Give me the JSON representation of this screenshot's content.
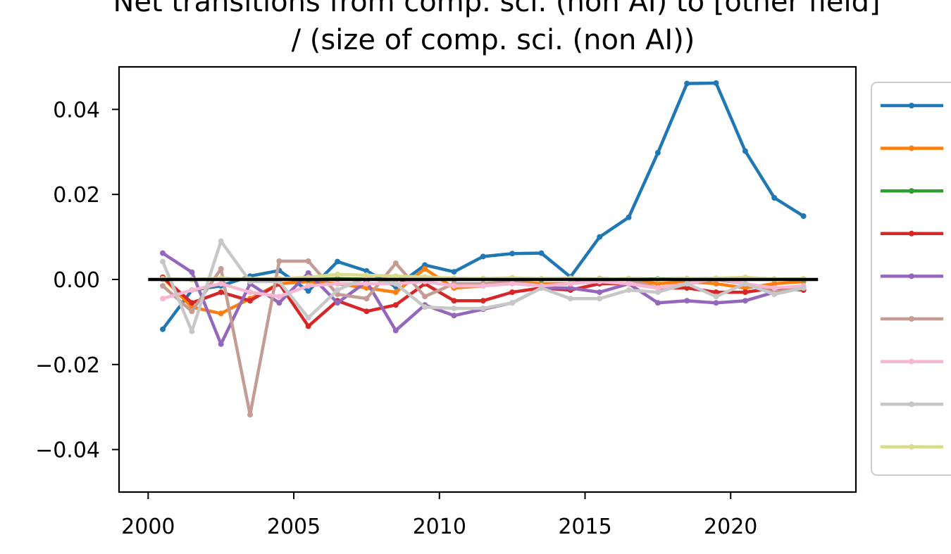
{
  "chart_data": {
    "type": "line",
    "title_line1": "Net transitions from comp. sci. (non AI) to [other field]",
    "title_line2": "/ (size of comp. sci. (non AI))",
    "xlabel": "",
    "ylabel": "",
    "xlim": [
      1999.0,
      2024.3
    ],
    "ylim": [
      -0.05,
      0.05
    ],
    "xticks": [
      2000,
      2005,
      2010,
      2015,
      2020
    ],
    "xtick_labels": [
      "2000",
      "2005",
      "2010",
      "2015",
      "2020"
    ],
    "yticks": [
      0.04,
      0.02,
      0.0,
      -0.02,
      -0.04
    ],
    "ytick_labels": [
      "0.04",
      "0.02",
      "0.00",
      "−0.02",
      "−0.04"
    ],
    "grid": false,
    "legend_placement": "outside right, clipped",
    "x": [
      2000.5,
      2001.5,
      2002.5,
      2003.5,
      2004.5,
      2005.5,
      2006.5,
      2007.5,
      2008.5,
      2009.5,
      2010.5,
      2011.5,
      2012.5,
      2013.5,
      2014.5,
      2015.5,
      2016.5,
      2017.5,
      2018.5,
      2019.5,
      2020.5,
      2021.5,
      2022.5
    ],
    "zero_line": {
      "x_from": 2000,
      "x_to": 2023,
      "y": 0.0,
      "color": "#000000"
    },
    "series": [
      {
        "color": "#1f77b4",
        "values": [
          -0.0117,
          -0.0025,
          -0.0015,
          0.0008,
          0.0021,
          -0.0027,
          0.0042,
          0.002,
          -0.0017,
          0.0034,
          0.0018,
          0.0054,
          0.0061,
          0.0062,
          0.0006,
          0.01,
          0.0146,
          0.0298,
          0.0461,
          0.0462,
          0.0302,
          0.0192,
          0.0149
        ]
      },
      {
        "color": "#ff7f0e",
        "values": [
          0.0005,
          -0.0065,
          -0.008,
          -0.0045,
          -0.001,
          -0.0005,
          -0.001,
          -0.002,
          -0.003,
          0.0025,
          -0.002,
          -0.0015,
          -0.0005,
          -0.001,
          -0.001,
          0.0002,
          0.0,
          -0.001,
          -0.0005,
          -0.001,
          -0.002,
          -0.001,
          -0.0005
        ]
      },
      {
        "color": "#2ca02c",
        "values": [
          0.0001,
          0.0,
          0.0002,
          0.0,
          0.0001,
          0.0,
          0.0002,
          0.0001,
          0.0,
          0.0001,
          0.0,
          0.0002,
          0.0001,
          0.0,
          0.0001,
          0.0,
          0.0002,
          0.0001,
          0.0002,
          0.0001,
          0.0002,
          0.0001,
          0.0
        ]
      },
      {
        "color": "#d62728",
        "values": [
          0.0005,
          -0.0055,
          -0.003,
          -0.005,
          -0.001,
          -0.011,
          -0.005,
          -0.0075,
          -0.006,
          -0.001,
          -0.005,
          -0.005,
          -0.003,
          -0.002,
          -0.0025,
          -0.001,
          -0.001,
          -0.002,
          -0.002,
          -0.003,
          -0.003,
          -0.002,
          -0.0025
        ]
      },
      {
        "color": "#9467bd",
        "values": [
          0.0062,
          0.0017,
          -0.0152,
          -0.001,
          -0.0055,
          0.0015,
          -0.0055,
          -0.0005,
          -0.012,
          -0.006,
          -0.0085,
          -0.007,
          -0.0055,
          -0.002,
          -0.002,
          -0.003,
          -0.001,
          -0.0055,
          -0.005,
          -0.0055,
          -0.005,
          -0.003,
          -0.002
        ]
      },
      {
        "color": "#c49c94",
        "values": [
          -0.0015,
          -0.0075,
          0.0025,
          -0.0318,
          0.0043,
          0.0043,
          -0.0035,
          -0.0045,
          0.0038,
          -0.004,
          -0.001,
          -0.001,
          -0.0005,
          -0.0015,
          -0.001,
          0.0002,
          0.0,
          -0.002,
          -0.001,
          0.0,
          -0.001,
          -0.003,
          -0.002
        ]
      },
      {
        "color": "#f7b6d2",
        "values": [
          -0.0045,
          -0.0025,
          -0.001,
          -0.003,
          -0.004,
          -0.0015,
          -0.001,
          -0.001,
          -0.001,
          -0.0005,
          -0.0015,
          -0.0015,
          -0.001,
          -0.0015,
          -0.001,
          -0.0005,
          -0.001,
          -0.002,
          -0.001,
          0.0003,
          -0.001,
          -0.002,
          -0.0015
        ]
      },
      {
        "color": "#c7c7c7",
        "values": [
          0.0042,
          -0.0122,
          0.009,
          -0.0005,
          -0.0005,
          -0.009,
          -0.0025,
          0.0005,
          -0.001,
          -0.0065,
          -0.0068,
          -0.0068,
          -0.0055,
          -0.002,
          -0.0045,
          -0.0045,
          -0.0025,
          -0.003,
          -0.001,
          -0.004,
          -0.001,
          -0.0035,
          -0.002
        ]
      },
      {
        "color": "#dbdb8d",
        "values": [
          0.0002,
          0.0,
          0.0003,
          0.0001,
          0.0002,
          0.0005,
          0.0012,
          0.001,
          0.0008,
          0.0006,
          0.0003,
          0.0002,
          0.0004,
          0.0002,
          0.0003,
          0.0001,
          0.0002,
          0.0,
          0.0002,
          0.0003,
          0.0005,
          0.0001,
          0.0002
        ]
      }
    ]
  }
}
